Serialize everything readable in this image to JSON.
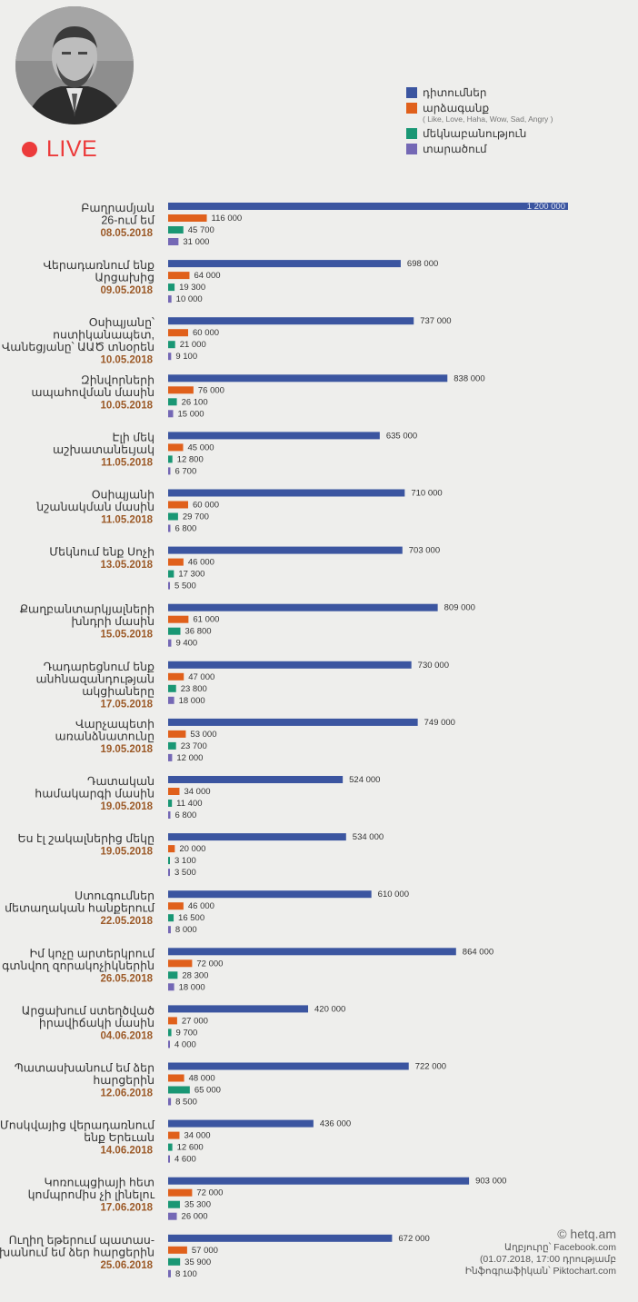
{
  "header": {
    "live_label": "LIVE",
    "photo_icon": "portrait-photo"
  },
  "legend": {
    "items": [
      {
        "label": "դիտումներ",
        "color": "#3b55a0"
      },
      {
        "label": "արձագանք",
        "color": "#e0601b",
        "note": "( Like, Love, Haha, Wow, Sad, Angry )"
      },
      {
        "label": "մեկնաբանություն",
        "color": "#199774"
      },
      {
        "label": "տարածում",
        "color": "#7468b5"
      }
    ]
  },
  "chart_data": {
    "type": "bar",
    "orientation": "horizontal",
    "xlim": [
      0,
      1200000
    ],
    "series": [
      {
        "name": "դիտումներ",
        "color": "#3b55a0",
        "values": [
          1200000,
          698000,
          737000,
          838000,
          635000,
          710000,
          703000,
          809000,
          730000,
          749000,
          524000,
          534000,
          610000,
          864000,
          420000,
          722000,
          436000,
          903000,
          672000
        ]
      },
      {
        "name": "արձագանք",
        "color": "#e0601b",
        "values": [
          116000,
          64000,
          60000,
          76000,
          45000,
          60000,
          46000,
          61000,
          47000,
          53000,
          34000,
          20000,
          46000,
          72000,
          27000,
          48000,
          34000,
          72000,
          57000
        ]
      },
      {
        "name": "մեկնաբանություն",
        "color": "#199774",
        "values": [
          45700,
          19300,
          21000,
          26100,
          12800,
          29700,
          17300,
          36800,
          23800,
          23700,
          11400,
          3100,
          16500,
          28300,
          9700,
          65000,
          12600,
          35300,
          35900
        ]
      },
      {
        "name": "տարածում",
        "color": "#7468b5",
        "values": [
          31000,
          10000,
          9100,
          15000,
          6700,
          6800,
          5500,
          9400,
          18000,
          12000,
          6800,
          3500,
          8000,
          18000,
          4000,
          8500,
          4600,
          26000,
          8100
        ]
      }
    ],
    "value_labels": [
      [
        "1 200 000",
        "116 000",
        "45 700",
        "31 000"
      ],
      [
        "698 000",
        "64 000",
        "19 300",
        "10 000"
      ],
      [
        "737 000",
        "60 000",
        "21 000",
        "9 100"
      ],
      [
        "838 000",
        "76 000",
        "26 100",
        "15 000"
      ],
      [
        "635 000",
        "45 000",
        "12 800",
        "6 700"
      ],
      [
        "710 000",
        "60 000",
        "29 700",
        "6 800"
      ],
      [
        "703 000",
        "46 000",
        "17 300",
        "5 500"
      ],
      [
        "809 000",
        "61 000",
        "36 800",
        "9 400"
      ],
      [
        "730 000",
        "47 000",
        "23 800",
        "18 000"
      ],
      [
        "749 000",
        "53 000",
        "23 700",
        "12 000"
      ],
      [
        "524 000",
        "34 000",
        "11 400",
        "6 800"
      ],
      [
        "534 000",
        "20 000",
        "3 100",
        "3 500"
      ],
      [
        "610 000",
        "46 000",
        "16 500",
        "8 000"
      ],
      [
        "864 000",
        "72 000",
        "28 300",
        "18 000"
      ],
      [
        "420 000",
        "27 000",
        "9 700",
        "4 000"
      ],
      [
        "722 000",
        "48 000",
        "65 000",
        "8 500"
      ],
      [
        "436 000",
        "34 000",
        "12 600",
        "4 600"
      ],
      [
        "903 000",
        "72 000",
        "35 300",
        "26 000"
      ],
      [
        "672 000",
        "57 000",
        "35 900",
        "8 100"
      ]
    ],
    "categories": [
      {
        "lines": [
          "Բաղրամյան",
          "26-ում եմ"
        ],
        "date": "08.05.2018"
      },
      {
        "lines": [
          "Վերադառնում ենք",
          "Արցախից"
        ],
        "date": "09.05.2018"
      },
      {
        "lines": [
          "Օսիպյանը՝",
          "ոստիկանապետ,",
          "Վանեցյանը՝ ԱԱԾ տնօրեն"
        ],
        "date": "10.05.2018"
      },
      {
        "lines": [
          "Զինվորների",
          "ապահովման մասին"
        ],
        "date": "10.05.2018"
      },
      {
        "lines": [
          "Էլի մեկ",
          "աշխատանեւյակ"
        ],
        "date": "11.05.2018"
      },
      {
        "lines": [
          "Օսիպյանի",
          "նշանակման մասին"
        ],
        "date": "11.05.2018"
      },
      {
        "lines": [
          "Մեկնում ենք Սոչի"
        ],
        "date": "13.05.2018"
      },
      {
        "lines": [
          "Քաղբանտարկյալների",
          "խնդրի մասին"
        ],
        "date": "15.05.2018"
      },
      {
        "lines": [
          "Դադարեցնում ենք",
          "անհնազանդության",
          "ակցիաները"
        ],
        "date": "17.05.2018"
      },
      {
        "lines": [
          "Վարչապետի",
          "առանձնատունը"
        ],
        "date": "19.05.2018"
      },
      {
        "lines": [
          "Դատական",
          "համակարգի մասին"
        ],
        "date": "19.05.2018"
      },
      {
        "lines": [
          "Ես էլ շակալներից մեկը"
        ],
        "date": "19.05.2018"
      },
      {
        "lines": [
          "Ստուգումներ",
          "մետաղական հանքերում"
        ],
        "date": "22.05.2018"
      },
      {
        "lines": [
          "Իմ կոչը արտերկրում",
          "գտնվող զորակոչիկներին"
        ],
        "date": "26.05.2018"
      },
      {
        "lines": [
          "Արցախում ստեղծված",
          "իրավիճակի մասին"
        ],
        "date": "04.06.2018"
      },
      {
        "lines": [
          "Պատասխանում եմ ձեր",
          "հարցերին"
        ],
        "date": "12.06.2018"
      },
      {
        "lines": [
          "Մոսկվայից վերադառնում",
          "ենք Երեւան"
        ],
        "date": "14.06.2018"
      },
      {
        "lines": [
          "Կոռուպցիայի հետ",
          "կոմպրոմիս չի լինելու"
        ],
        "date": "17.06.2018"
      },
      {
        "lines": [
          "Ուղիղ եթերում պատաս-",
          "խանում եմ ձեր հարցերին"
        ],
        "date": "25.06.2018"
      }
    ]
  },
  "footer": {
    "copyright": "© hetq.am",
    "source": "Աղբյուրը՝ Facebook.com",
    "as_of": "(01.07.2018, 17:00 դրությամբ",
    "infographic": "Ինֆոգրաֆիկան՝ Piktochart.com"
  }
}
